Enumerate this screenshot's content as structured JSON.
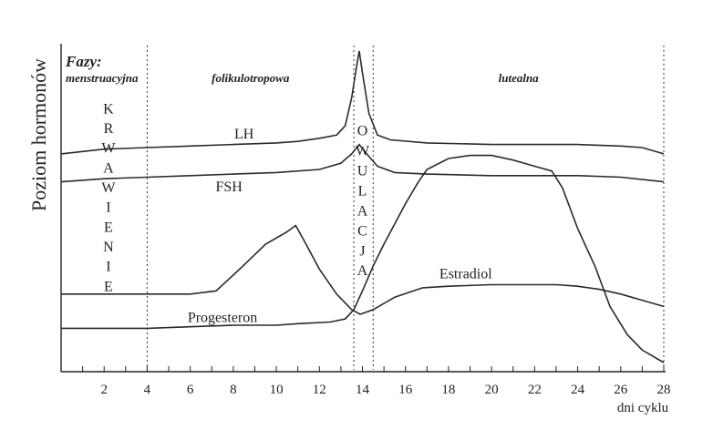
{
  "chart_data": {
    "type": "line",
    "ylabel": "Poziom hormonów",
    "xlabel": "dni cyklu",
    "xlim": [
      0,
      28
    ],
    "ylim": [
      0,
      100
    ],
    "x_ticks": [
      2,
      4,
      6,
      8,
      10,
      12,
      14,
      16,
      18,
      20,
      22,
      24,
      26,
      28
    ],
    "phases_title": "Fazy:",
    "phases": [
      {
        "label": "menstruacyjna",
        "start": 0,
        "end": 4
      },
      {
        "label": "folikulotropowa",
        "start": 4,
        "end": 13.6
      },
      {
        "label": "lutealna",
        "start": 14.5,
        "end": 28
      }
    ],
    "dividers": [
      4,
      13.6,
      14.5,
      28
    ],
    "vertical_labels": [
      {
        "text": "KRWAWIENIE",
        "x": 2.2,
        "y_top": 80,
        "y_bottom": 23
      },
      {
        "text": "OWULACJA",
        "x": 14.0,
        "y_top": 73,
        "y_bottom": 28
      }
    ],
    "series": [
      {
        "name": "LH",
        "label_at": [
          8.5,
          72
        ],
        "points": [
          [
            0,
            67
          ],
          [
            2,
            68.5
          ],
          [
            4,
            69
          ],
          [
            6,
            69.5
          ],
          [
            8,
            70
          ],
          [
            10,
            70.5
          ],
          [
            11,
            71
          ],
          [
            12,
            72
          ],
          [
            12.8,
            73
          ],
          [
            13.2,
            76
          ],
          [
            13.5,
            85
          ],
          [
            13.75,
            96
          ],
          [
            13.85,
            100
          ],
          [
            14.0,
            93
          ],
          [
            14.3,
            80
          ],
          [
            14.7,
            73
          ],
          [
            15.3,
            71.5
          ],
          [
            17,
            70.5
          ],
          [
            20,
            70
          ],
          [
            22,
            70
          ],
          [
            24,
            70
          ],
          [
            26,
            69.5
          ],
          [
            27,
            69
          ],
          [
            28,
            67
          ]
        ]
      },
      {
        "name": "FSH",
        "label_at": [
          7.8,
          55
        ],
        "points": [
          [
            0,
            58
          ],
          [
            2,
            59
          ],
          [
            4,
            59.5
          ],
          [
            6,
            60
          ],
          [
            8,
            60.5
          ],
          [
            10,
            61
          ],
          [
            12,
            62
          ],
          [
            13,
            64
          ],
          [
            13.5,
            67
          ],
          [
            13.85,
            70
          ],
          [
            14.2,
            67
          ],
          [
            14.7,
            63
          ],
          [
            15.5,
            61
          ],
          [
            17,
            60.5
          ],
          [
            20,
            60
          ],
          [
            24,
            60
          ],
          [
            26,
            59.5
          ],
          [
            28,
            58
          ]
        ]
      },
      {
        "name": "Progesteron",
        "label_at": [
          7.5,
          13
        ],
        "points": [
          [
            0,
            11
          ],
          [
            2,
            11
          ],
          [
            4,
            11
          ],
          [
            6,
            11.5
          ],
          [
            8,
            12
          ],
          [
            10,
            12
          ],
          [
            11,
            12.5
          ],
          [
            12.5,
            13
          ],
          [
            13.2,
            14
          ],
          [
            13.6,
            17
          ],
          [
            14,
            23
          ],
          [
            14.5,
            31
          ],
          [
            15,
            38
          ],
          [
            16,
            51
          ],
          [
            16.6,
            58
          ],
          [
            17,
            62
          ],
          [
            18,
            65.5
          ],
          [
            19,
            66.5
          ],
          [
            20,
            66.5
          ],
          [
            21,
            65
          ],
          [
            22,
            63
          ],
          [
            22.8,
            61.5
          ],
          [
            23.3,
            56
          ],
          [
            24,
            43
          ],
          [
            24.8,
            31
          ],
          [
            25.5,
            18
          ],
          [
            26.3,
            9
          ],
          [
            27,
            4
          ],
          [
            28,
            0
          ]
        ]
      },
      {
        "name": "Estradiol",
        "label_at": [
          18.8,
          27
        ],
        "points": [
          [
            0,
            22
          ],
          [
            2,
            22
          ],
          [
            4,
            22
          ],
          [
            6,
            22
          ],
          [
            7.2,
            23
          ],
          [
            8.3,
            30
          ],
          [
            9.5,
            38
          ],
          [
            10.5,
            42
          ],
          [
            10.9,
            44
          ],
          [
            11.3,
            39
          ],
          [
            12,
            30
          ],
          [
            12.8,
            22
          ],
          [
            13.5,
            17
          ],
          [
            13.9,
            15.5
          ],
          [
            14.5,
            17
          ],
          [
            15.5,
            21
          ],
          [
            16.8,
            24
          ],
          [
            18,
            24.5
          ],
          [
            20,
            25
          ],
          [
            22,
            25
          ],
          [
            23,
            25
          ],
          [
            24,
            24.5
          ],
          [
            25,
            23.5
          ],
          [
            26,
            22
          ],
          [
            27,
            20
          ],
          [
            28,
            18
          ]
        ]
      }
    ]
  }
}
